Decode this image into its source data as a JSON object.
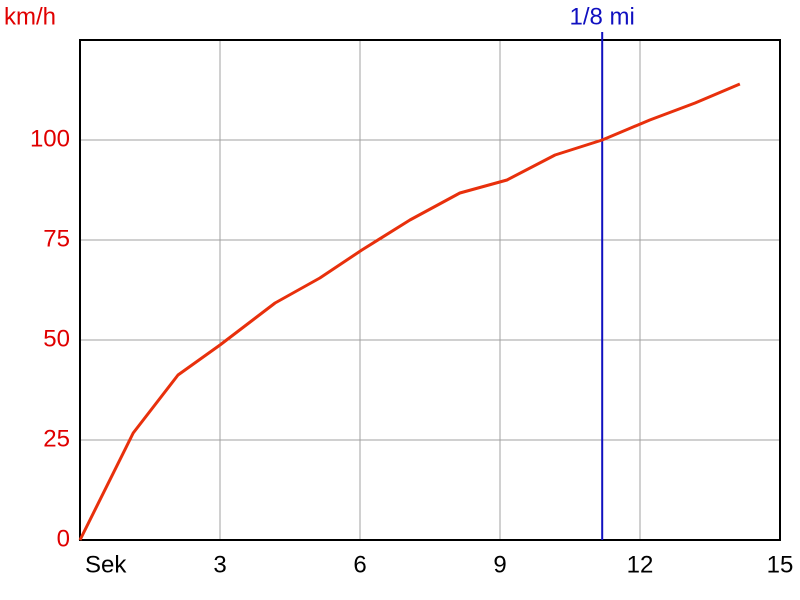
{
  "chart_data": {
    "type": "line",
    "y_label": "km/h",
    "x": [
      0,
      1.14,
      2.1,
      3.0,
      4.18,
      5.14,
      6.04,
      7.07,
      8.14,
      9.15,
      10.18,
      11.19,
      12.21,
      13.18,
      14.14
    ],
    "series": [
      {
        "color": "#e8300c",
        "values": [
          0,
          26.75,
          41.25,
          48.75,
          59.25,
          65.5,
          72.5,
          80,
          86.75,
          90,
          96.25,
          100,
          105,
          109.25,
          114
        ]
      }
    ],
    "xlim": [
      0,
      15
    ],
    "xticks": [
      {
        "value": 0,
        "label": "Sek"
      },
      3,
      6,
      9,
      12,
      15
    ],
    "ylim": [
      0,
      125
    ],
    "yticks": [
      0,
      25,
      50,
      75,
      100
    ],
    "grid": true,
    "y_tick_color": "#e00000",
    "markers": [
      {
        "x": 11.19,
        "label": "1/8 mi",
        "color": "#1010c0"
      }
    ]
  }
}
